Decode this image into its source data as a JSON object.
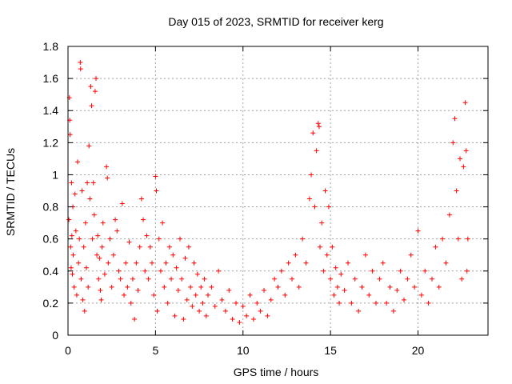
{
  "chart_data": {
    "type": "scatter",
    "title": "Day 015 of 2023, SRMTID for receiver kerg",
    "xlabel": "GPS time / hours",
    "ylabel": "SRMTID / TECUs",
    "xlim": [
      0,
      24
    ],
    "ylim": [
      0,
      1.8
    ],
    "xticks": [
      0,
      5,
      10,
      15,
      20
    ],
    "yticks": [
      0,
      0.2,
      0.4,
      0.6,
      0.8,
      1.0,
      1.2,
      1.4,
      1.6,
      1.8
    ],
    "ytick_labels": [
      "0",
      "0.2",
      "0.4",
      "0.6",
      "0.8",
      "1",
      "1.2",
      "1.4",
      "1.6",
      "1.8"
    ],
    "grid": true,
    "marker": "+",
    "colors": {
      "series": "#ff0000",
      "grid": "#a0a0a0",
      "frame": "#000000"
    },
    "series": [
      {
        "name": "SRMTID",
        "points": [
          [
            0.05,
            0.72
          ],
          [
            0.08,
            1.48
          ],
          [
            0.1,
            1.34
          ],
          [
            0.12,
            1.25
          ],
          [
            0.15,
            0.55
          ],
          [
            0.18,
            0.42
          ],
          [
            0.2,
            0.95
          ],
          [
            0.22,
            0.62
          ],
          [
            0.25,
            0.38
          ],
          [
            0.28,
            0.8
          ],
          [
            0.3,
            0.5
          ],
          [
            0.35,
            0.3
          ],
          [
            0.4,
            0.88
          ],
          [
            0.45,
            0.65
          ],
          [
            0.5,
            0.25
          ],
          [
            0.55,
            1.08
          ],
          [
            0.6,
            0.45
          ],
          [
            0.65,
            0.6
          ],
          [
            0.7,
            1.7
          ],
          [
            0.72,
            1.66
          ],
          [
            0.75,
            0.35
          ],
          [
            0.8,
            0.9
          ],
          [
            0.85,
            0.22
          ],
          [
            0.9,
            0.55
          ],
          [
            0.95,
            0.15
          ],
          [
            1.0,
            0.7
          ],
          [
            1.05,
            0.42
          ],
          [
            1.1,
            0.95
          ],
          [
            1.15,
            0.3
          ],
          [
            1.2,
            1.18
          ],
          [
            1.25,
            0.85
          ],
          [
            1.3,
            1.55
          ],
          [
            1.35,
            1.43
          ],
          [
            1.4,
            0.6
          ],
          [
            1.45,
            0.95
          ],
          [
            1.5,
            0.75
          ],
          [
            1.55,
            1.52
          ],
          [
            1.6,
            1.6
          ],
          [
            1.65,
            0.5
          ],
          [
            1.7,
            0.62
          ],
          [
            1.75,
            0.35
          ],
          [
            1.8,
            0.48
          ],
          [
            1.85,
            0.28
          ],
          [
            1.9,
            0.22
          ],
          [
            1.95,
            0.55
          ],
          [
            2.0,
            0.7
          ],
          [
            2.1,
            0.38
          ],
          [
            2.2,
            1.05
          ],
          [
            2.25,
            0.98
          ],
          [
            2.3,
            0.45
          ],
          [
            2.4,
            0.6
          ],
          [
            2.5,
            0.3
          ],
          [
            2.6,
            0.5
          ],
          [
            2.7,
            0.72
          ],
          [
            2.8,
            0.65
          ],
          [
            2.9,
            0.4
          ],
          [
            3.0,
            0.35
          ],
          [
            3.1,
            0.82
          ],
          [
            3.2,
            0.25
          ],
          [
            3.3,
            0.45
          ],
          [
            3.4,
            0.3
          ],
          [
            3.5,
            0.58
          ],
          [
            3.6,
            0.2
          ],
          [
            3.7,
            0.35
          ],
          [
            3.8,
            0.1
          ],
          [
            3.9,
            0.45
          ],
          [
            4.0,
            0.28
          ],
          [
            4.1,
            0.55
          ],
          [
            4.2,
            0.85
          ],
          [
            4.3,
            0.72
          ],
          [
            4.4,
            0.4
          ],
          [
            4.5,
            0.62
          ],
          [
            4.6,
            0.35
          ],
          [
            4.7,
            0.55
          ],
          [
            4.8,
            0.45
          ],
          [
            4.9,
            0.25
          ],
          [
            5.0,
            0.99
          ],
          [
            5.05,
            0.9
          ],
          [
            5.1,
            0.15
          ],
          [
            5.2,
            0.6
          ],
          [
            5.3,
            0.4
          ],
          [
            5.4,
            0.7
          ],
          [
            5.5,
            0.3
          ],
          [
            5.6,
            0.45
          ],
          [
            5.7,
            0.2
          ],
          [
            5.8,
            0.55
          ],
          [
            5.9,
            0.35
          ],
          [
            6.0,
            0.5
          ],
          [
            6.1,
            0.12
          ],
          [
            6.2,
            0.42
          ],
          [
            6.3,
            0.28
          ],
          [
            6.4,
            0.6
          ],
          [
            6.5,
            0.35
          ],
          [
            6.6,
            0.1
          ],
          [
            6.7,
            0.48
          ],
          [
            6.8,
            0.22
          ],
          [
            6.9,
            0.55
          ],
          [
            7.0,
            0.3
          ],
          [
            7.1,
            0.18
          ],
          [
            7.2,
            0.45
          ],
          [
            7.3,
            0.25
          ],
          [
            7.4,
            0.38
          ],
          [
            7.5,
            0.15
          ],
          [
            7.6,
            0.3
          ],
          [
            7.7,
            0.2
          ],
          [
            7.8,
            0.35
          ],
          [
            7.9,
            0.12
          ],
          [
            8.0,
            0.25
          ],
          [
            8.2,
            0.3
          ],
          [
            8.4,
            0.18
          ],
          [
            8.6,
            0.4
          ],
          [
            8.8,
            0.22
          ],
          [
            9.0,
            0.15
          ],
          [
            9.2,
            0.28
          ],
          [
            9.4,
            0.1
          ],
          [
            9.6,
            0.2
          ],
          [
            9.8,
            0.08
          ],
          [
            10.0,
            0.18
          ],
          [
            10.2,
            0.12
          ],
          [
            10.4,
            0.25
          ],
          [
            10.6,
            0.1
          ],
          [
            10.8,
            0.2
          ],
          [
            11.0,
            0.15
          ],
          [
            11.2,
            0.28
          ],
          [
            11.4,
            0.12
          ],
          [
            11.6,
            0.22
          ],
          [
            11.8,
            0.35
          ],
          [
            12.0,
            0.3
          ],
          [
            12.2,
            0.4
          ],
          [
            12.4,
            0.25
          ],
          [
            12.6,
            0.45
          ],
          [
            12.8,
            0.35
          ],
          [
            13.0,
            0.5
          ],
          [
            13.2,
            0.3
          ],
          [
            13.4,
            0.6
          ],
          [
            13.6,
            0.45
          ],
          [
            13.8,
            0.85
          ],
          [
            13.9,
            1.0
          ],
          [
            14.0,
            1.26
          ],
          [
            14.1,
            0.8
          ],
          [
            14.2,
            1.15
          ],
          [
            14.3,
            1.32
          ],
          [
            14.35,
            1.3
          ],
          [
            14.4,
            0.55
          ],
          [
            14.5,
            0.7
          ],
          [
            14.6,
            0.4
          ],
          [
            14.7,
            0.9
          ],
          [
            14.8,
            0.5
          ],
          [
            14.9,
            0.8
          ],
          [
            15.0,
            0.35
          ],
          [
            15.1,
            0.55
          ],
          [
            15.2,
            0.25
          ],
          [
            15.3,
            0.42
          ],
          [
            15.4,
            0.3
          ],
          [
            15.5,
            0.2
          ],
          [
            15.6,
            0.38
          ],
          [
            15.8,
            0.28
          ],
          [
            16.0,
            0.45
          ],
          [
            16.2,
            0.2
          ],
          [
            16.4,
            0.35
          ],
          [
            16.6,
            0.15
          ],
          [
            16.8,
            0.3
          ],
          [
            17.0,
            0.5
          ],
          [
            17.2,
            0.25
          ],
          [
            17.4,
            0.4
          ],
          [
            17.6,
            0.2
          ],
          [
            17.8,
            0.35
          ],
          [
            18.0,
            0.45
          ],
          [
            18.2,
            0.2
          ],
          [
            18.4,
            0.3
          ],
          [
            18.6,
            0.15
          ],
          [
            18.8,
            0.28
          ],
          [
            19.0,
            0.4
          ],
          [
            19.2,
            0.22
          ],
          [
            19.4,
            0.35
          ],
          [
            19.6,
            0.5
          ],
          [
            19.8,
            0.3
          ],
          [
            20.0,
            0.65
          ],
          [
            20.2,
            0.25
          ],
          [
            20.4,
            0.4
          ],
          [
            20.6,
            0.2
          ],
          [
            20.8,
            0.35
          ],
          [
            21.0,
            0.55
          ],
          [
            21.2,
            0.3
          ],
          [
            21.4,
            0.6
          ],
          [
            21.6,
            0.45
          ],
          [
            21.8,
            0.75
          ],
          [
            22.0,
            1.2
          ],
          [
            22.1,
            1.35
          ],
          [
            22.2,
            0.9
          ],
          [
            22.3,
            0.6
          ],
          [
            22.4,
            1.1
          ],
          [
            22.5,
            0.35
          ],
          [
            22.6,
            1.05
          ],
          [
            22.7,
            1.45
          ],
          [
            22.75,
            1.15
          ],
          [
            22.8,
            0.4
          ],
          [
            22.85,
            0.6
          ]
        ]
      }
    ]
  }
}
